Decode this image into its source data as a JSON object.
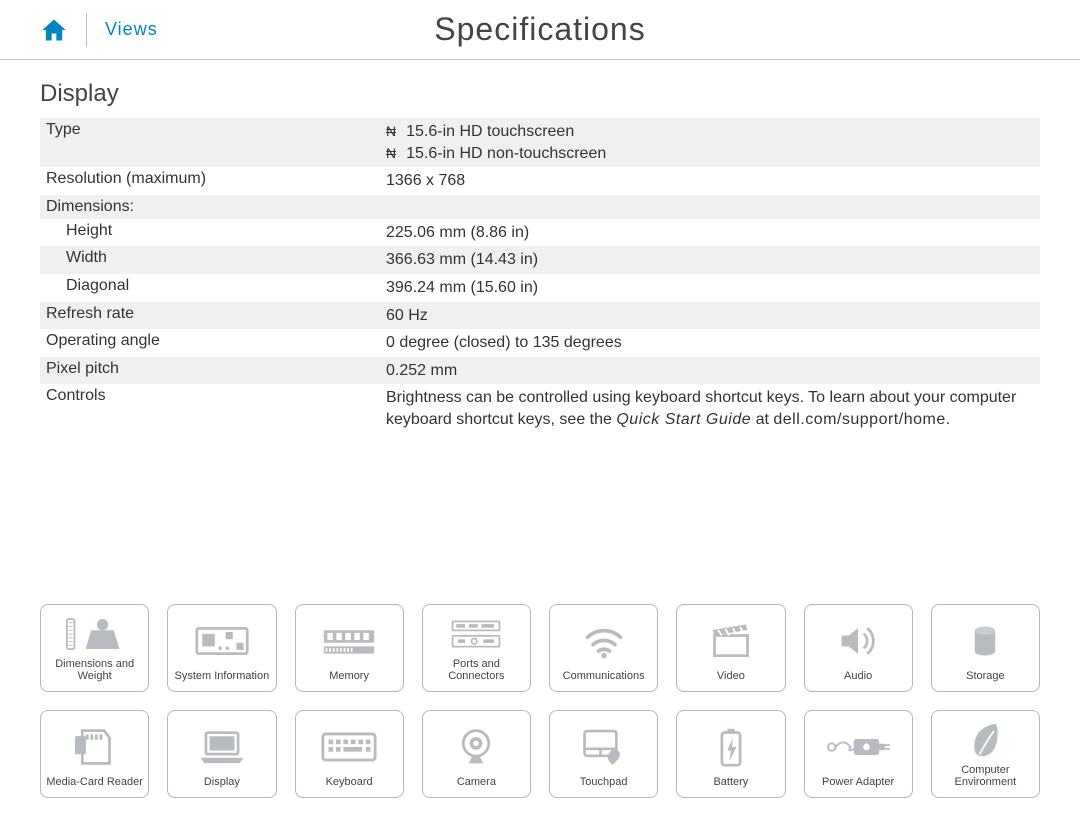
{
  "colors": {
    "accent": "#0085c3",
    "icon_gray": "#b8bcc0",
    "border_gray": "#b8b8b8",
    "text": "#333333",
    "stripe": "#f0f0f0"
  },
  "header": {
    "views_label": "Views",
    "page_title": "Specifications"
  },
  "section": {
    "title": "Display",
    "rows": [
      {
        "label": "Type",
        "bullets": [
          "15.6-in HD touchscreen",
          "15.6-in HD non-touchscreen"
        ],
        "striped": true,
        "indent": false
      },
      {
        "label": "Resolution (maximum)",
        "value": "1366 x 768",
        "striped": false,
        "indent": false
      },
      {
        "label": "Dimensions:",
        "value": "",
        "striped": true,
        "indent": false
      },
      {
        "label": "Height",
        "value": "225.06 mm (8.86 in)",
        "striped": false,
        "indent": true
      },
      {
        "label": "Width",
        "value": "366.63 mm (14.43 in)",
        "striped": true,
        "indent": true
      },
      {
        "label": "Diagonal",
        "value": "396.24 mm (15.60 in)",
        "striped": false,
        "indent": true
      },
      {
        "label": "Refresh rate",
        "value": "60 Hz",
        "striped": true,
        "indent": false
      },
      {
        "label": "Operating angle",
        "value": "0 degree (closed) to 135 degrees",
        "striped": false,
        "indent": false
      },
      {
        "label": "Pixel pitch",
        "value": "0.252 mm",
        "striped": true,
        "indent": false
      }
    ],
    "controls": {
      "label": "Controls",
      "text1": "Brightness can be controlled using keyboard shortcut keys. To learn about your computer keyboard shortcut keys, see the ",
      "guide": "Quick Start Guide",
      "text2": " at ",
      "url": "dell.com/support/home",
      "text3": "."
    }
  },
  "nav": {
    "tiles": [
      {
        "name": "dimensions-and-weight",
        "label": "Dimensions and Weight",
        "icon": "weight"
      },
      {
        "name": "system-information",
        "label": "System Information",
        "icon": "board"
      },
      {
        "name": "memory",
        "label": "Memory",
        "icon": "memory"
      },
      {
        "name": "ports-and-connectors",
        "label": "Ports and Connectors",
        "icon": "ports"
      },
      {
        "name": "communications",
        "label": "Communications",
        "icon": "wifi"
      },
      {
        "name": "video",
        "label": "Video",
        "icon": "clapper"
      },
      {
        "name": "audio",
        "label": "Audio",
        "icon": "speaker"
      },
      {
        "name": "storage",
        "label": "Storage",
        "icon": "cylinder"
      },
      {
        "name": "media-card-reader",
        "label": "Media-Card Reader",
        "icon": "sdcard"
      },
      {
        "name": "display",
        "label": "Display",
        "icon": "laptop"
      },
      {
        "name": "keyboard",
        "label": "Keyboard",
        "icon": "keyboard"
      },
      {
        "name": "camera",
        "label": "Camera",
        "icon": "webcam"
      },
      {
        "name": "touchpad",
        "label": "Touchpad",
        "icon": "touchpad"
      },
      {
        "name": "battery",
        "label": "Battery",
        "icon": "battery"
      },
      {
        "name": "power-adapter",
        "label": "Power Adapter",
        "icon": "power"
      },
      {
        "name": "computer-environment",
        "label": "Computer Environment",
        "icon": "leaf"
      }
    ]
  }
}
